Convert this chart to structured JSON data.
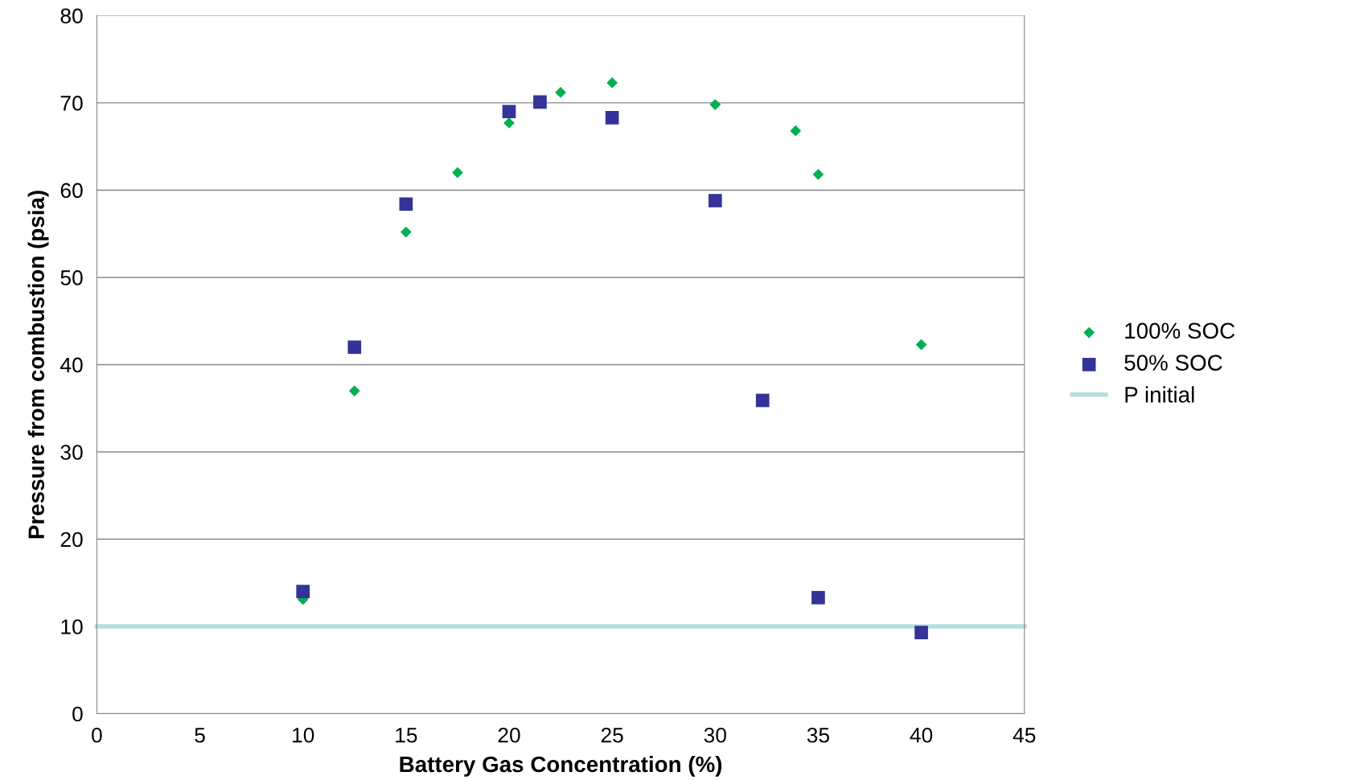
{
  "chart_data": {
    "type": "scatter",
    "xlabel": "Battery Gas Concentration (%)",
    "ylabel": "Pressure from combustion (psia)",
    "series": [
      {
        "name": "100% SOC",
        "color": "#00b050",
        "marker": "diamond",
        "x": [
          10,
          12.5,
          15,
          17.5,
          20,
          22.5,
          25,
          30,
          33.9,
          35,
          40
        ],
        "values": [
          13.1,
          37.0,
          55.2,
          62.0,
          67.7,
          71.2,
          72.3,
          69.8,
          66.8,
          61.8,
          42.3
        ]
      },
      {
        "name": "50% SOC",
        "color": "#333399",
        "marker": "square",
        "x": [
          10,
          12.5,
          15,
          20,
          21.5,
          25,
          30,
          32.3,
          35,
          40
        ],
        "values": [
          14.0,
          42.0,
          58.4,
          69.0,
          70.1,
          68.3,
          58.8,
          35.9,
          13.3,
          9.3
        ]
      },
      {
        "name": "P initial",
        "type": "line",
        "color": "#b4dfe2",
        "marker": "none",
        "x": [
          0,
          45
        ],
        "values": [
          10,
          10
        ]
      }
    ],
    "xlim": [
      0,
      45
    ],
    "xticks": [
      0,
      5,
      10,
      15,
      20,
      25,
      30,
      35,
      40,
      45
    ],
    "ylim": [
      0,
      80
    ],
    "yticks": [
      0,
      10,
      20,
      30,
      40,
      50,
      60,
      70,
      80
    ],
    "grid": "y",
    "legend": "right"
  }
}
